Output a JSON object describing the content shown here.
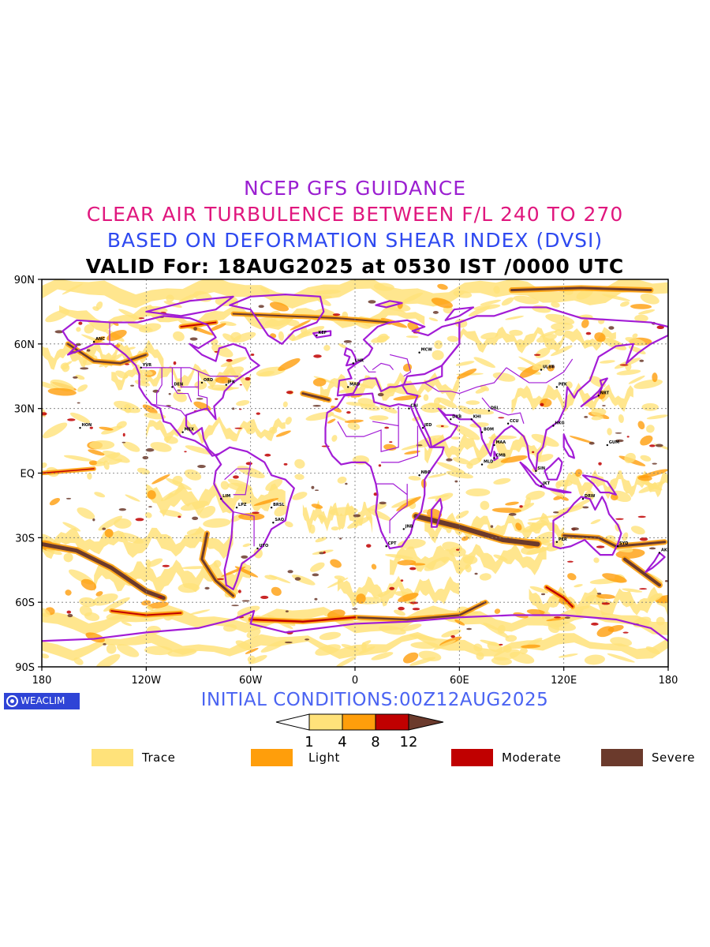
{
  "titles": {
    "line1": "NCEP GFS GUIDANCE",
    "line2": "CLEAR AIR TURBULENCE BETWEEN F/L 240 TO 270",
    "line3": "BASED ON DEFORMATION SHEAR INDEX (DVSI)",
    "line4": "VALID For: 18AUG2025 at 0530 IST /0000 UTC"
  },
  "colors": {
    "title1": "#9b1fd1",
    "title2": "#e0177e",
    "title3": "#2e49f0",
    "title4": "#000000",
    "coastline": "#a21cd6",
    "trace": "#ffe27a",
    "light": "#ff9e0b",
    "moderate": "#c00000",
    "severe": "#6b3a2c",
    "brand_bg": "#2f44d6",
    "initial_conditions": "#4a63f2"
  },
  "axes": {
    "y_labels": [
      "90N",
      "60N",
      "30N",
      "EQ",
      "30S",
      "60S",
      "90S"
    ],
    "x_labels": [
      "180",
      "120W",
      "60W",
      "0",
      "60E",
      "120E",
      "180"
    ]
  },
  "map": {
    "region": "global",
    "projection": "equirectangular",
    "grid": true,
    "station_labels": [
      "ANC",
      "YVR",
      "DEN",
      "ORD",
      "JFK",
      "HON",
      "MEX",
      "LIM",
      "LPZ",
      "BRSL",
      "SAO",
      "KEF",
      "LHR",
      "MAD",
      "CAI",
      "JED",
      "DXB",
      "KHI",
      "DEL",
      "BOM",
      "CCU",
      "MAA",
      "PEK",
      "NRT",
      "HKG",
      "SIN",
      "JKT",
      "DRW",
      "PER",
      "SYD",
      "AKL",
      "JNB",
      "CPT",
      "NBO",
      "MCW",
      "ULBT",
      "GUM",
      "MLD",
      "CMB",
      "UTO"
    ]
  },
  "brand": "WEACLIM",
  "initial_conditions": "INITIAL CONDITIONS:00Z12AUG2025",
  "colorbar": {
    "ticks": [
      "1",
      "4",
      "8",
      "12"
    ]
  },
  "legend": [
    {
      "label": "Trace",
      "color": "#ffe27a"
    },
    {
      "label": "Light",
      "color": "#ff9e0b"
    },
    {
      "label": "Moderate",
      "color": "#c00000"
    },
    {
      "label": "Severe",
      "color": "#6b3a2c"
    }
  ]
}
